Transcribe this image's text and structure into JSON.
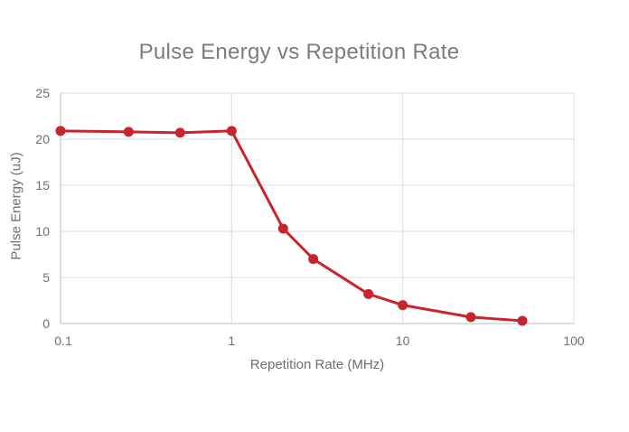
{
  "chart": {
    "title": "Pulse Energy vs Repetition Rate"
  },
  "chart_data": {
    "type": "line",
    "title": "Pulse Energy vs Repetition Rate",
    "xlabel": "Repetition Rate (MHz)",
    "ylabel": "Pulse Energy (uJ)",
    "x_scale": "log",
    "x": [
      0.1,
      0.25,
      0.5,
      1,
      2,
      3,
      6.3,
      10,
      25,
      50
    ],
    "y": [
      20.9,
      20.8,
      20.7,
      20.9,
      10.3,
      7.0,
      3.2,
      2.0,
      0.7,
      0.3
    ],
    "xlim": [
      0.1,
      100
    ],
    "ylim": [
      0,
      25
    ],
    "x_tick_labels": [
      "0.1",
      "1",
      "10",
      "100"
    ],
    "x_tick_values": [
      0.1,
      1,
      10,
      100
    ],
    "y_tick_labels": [
      "0",
      "5",
      "10",
      "15",
      "20",
      "25"
    ],
    "y_tick_values": [
      0,
      5,
      10,
      15,
      20,
      25
    ],
    "grid": true,
    "legend": "none",
    "line_color": "#c8242b",
    "marker": "circle",
    "marker_radius": 5.5,
    "line_width": 3
  },
  "colors": {
    "background": "#ffffff",
    "gridline": "#dadbdc",
    "axis_line": "#b9bbbd",
    "tick_text": "#6d6e71",
    "title_text": "#7b7c7f",
    "series_red": "#c8242b"
  }
}
